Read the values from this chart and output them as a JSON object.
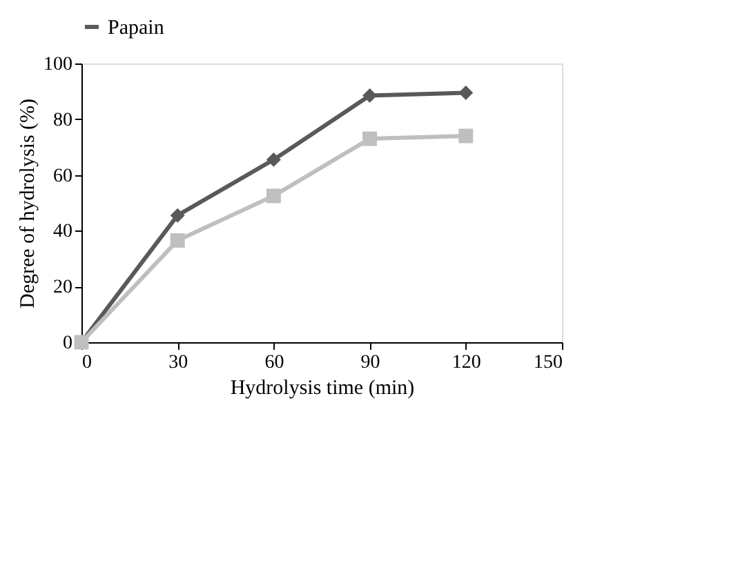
{
  "chart_data": {
    "type": "line",
    "xlabel": "Hydrolysis time (min)",
    "ylabel": "Degree of hydrolysis (%)",
    "x": [
      0,
      30,
      60,
      90,
      120
    ],
    "series": [
      {
        "name": "Papain",
        "color": "#595959",
        "marker": "diamond",
        "values": [
          0,
          45.5,
          65.5,
          88.5,
          89.5
        ]
      },
      {
        "color": "#bfbfbf",
        "marker": "square",
        "values": [
          0,
          36.5,
          52.5,
          73,
          74
        ]
      }
    ],
    "xlim": [
      0,
      150
    ],
    "xticks": [
      0,
      30,
      60,
      90,
      120,
      150
    ],
    "ylim": [
      0,
      100
    ],
    "yticks": [
      0,
      20,
      40,
      60,
      80,
      100
    ],
    "grid": false,
    "legend": "top",
    "line_style": "solid"
  }
}
